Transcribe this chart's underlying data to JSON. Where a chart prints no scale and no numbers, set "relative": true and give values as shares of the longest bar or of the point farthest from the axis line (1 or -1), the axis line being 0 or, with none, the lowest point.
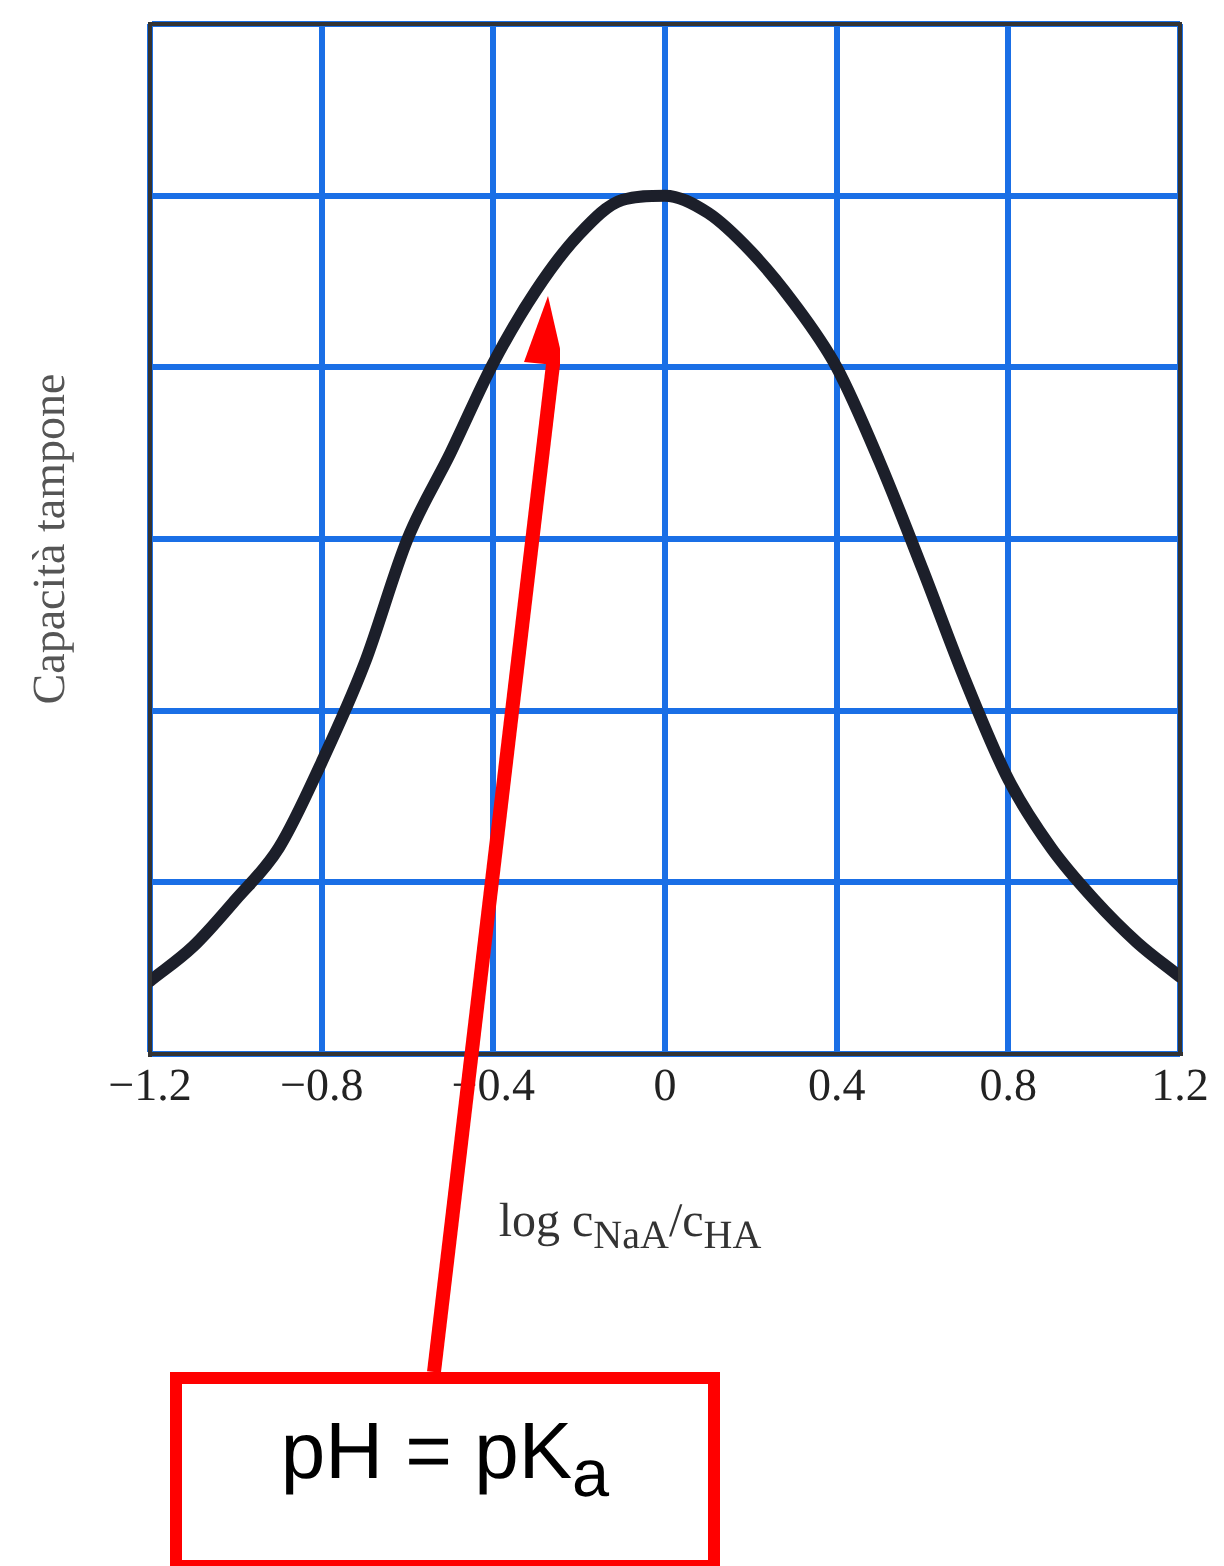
{
  "chart_data": {
    "type": "line",
    "relative": true,
    "x": [
      -1.2,
      -1.1,
      -1.0,
      -0.9,
      -0.8,
      -0.7,
      -0.6,
      -0.5,
      -0.4,
      -0.3,
      -0.2,
      -0.1,
      0,
      0.1,
      0.2,
      0.3,
      0.4,
      0.5,
      0.6,
      0.7,
      0.8,
      0.9,
      1.0,
      1.1,
      1.2
    ],
    "series": [
      {
        "color": "#1c1f2a",
        "values": [
          0.085,
          0.125,
          0.18,
          0.24,
          0.34,
          0.455,
          0.6,
          0.7,
          0.805,
          0.89,
          0.955,
          0.995,
          1,
          0.98,
          0.935,
          0.875,
          0.8,
          0.69,
          0.565,
          0.435,
          0.32,
          0.24,
          0.18,
          0.13,
          0.09
        ]
      }
    ],
    "xlim": [
      -1.2,
      1.2
    ],
    "xticks": [
      {
        "value": -1.2,
        "label": "−1.2"
      },
      {
        "value": -0.8,
        "label": "−0.8"
      },
      {
        "value": -0.4,
        "label": "−0.4"
      },
      0,
      0.4,
      0.8,
      1.2
    ],
    "xlabel": "log c$_{NaA}$/c$_{HA}$",
    "ylabel": "Capacità tampone",
    "grid": true,
    "tick_labels": "x",
    "legend": false,
    "marker": "none",
    "line_style": "solid",
    "annotations": [
      "pH = pK$_{a}$"
    ]
  }
}
